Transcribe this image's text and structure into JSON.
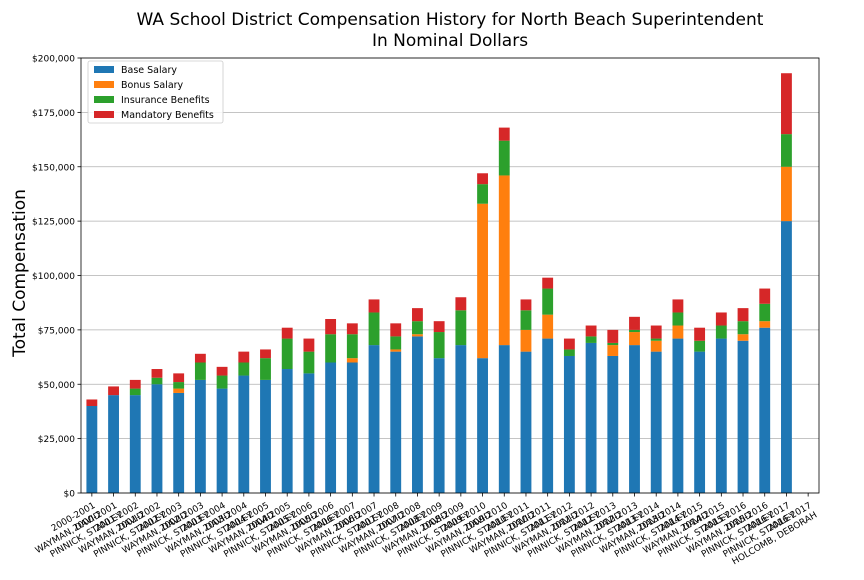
{
  "chart_data": {
    "type": "bar",
    "stacked": true,
    "title": "WA School District Compensation History for North Beach Superintendent",
    "subtitle": "In Nominal Dollars",
    "ylabel": "Total Compensation",
    "xlabel": "",
    "ylim": [
      0,
      200000
    ],
    "yticks": [
      0,
      25000,
      50000,
      75000,
      100000,
      125000,
      150000,
      175000,
      200000
    ],
    "ytick_labels": [
      "$0",
      "$25,000",
      "$50,000",
      "$75,000",
      "$100,000",
      "$125,000",
      "$150,000",
      "$175,000",
      "$200,000"
    ],
    "grid": "horizontal",
    "legend_position": "top-left",
    "categories": [
      "2000-2001\nWAYMAN, DAVID",
      "2000-2001\nPINNICK, STANLEY",
      "2001-2002\nWAYMAN, DAVID",
      "2001-2002\nPINNICK, STANLEY",
      "2002-2003\nWAYMAN, DAVID",
      "2002-2003\nPINNICK, STANLEY",
      "2003-2004\nWAYMAN, DAVID",
      "2003-2004\nPINNICK, STANLEY",
      "2004-2005\nWAYMAN, DAVID",
      "2004-2005\nPINNICK, STANLEY",
      "2005-2006\nWAYMAN, DAVID",
      "2005-2006\nPINNICK, STANLEY",
      "2006-2007\nWAYMAN, DAVID",
      "2006-2007\nPINNICK, STANLEY",
      "2007-2008\nWAYMAN, DAVID",
      "2007-2008\nPINNICK, STANLEY",
      "2008-2009\nWAYMAN, DAVID",
      "2008-2009\nPINNICK, STANLEY",
      "2009-2010\nWAYMAN, DAVID",
      "2009-2010\nPINNICK, STANLEY",
      "2010-2011\nWAYMAN, DAVID",
      "2010-2011\nPINNICK, STANLEY",
      "2011-2012\nWAYMAN, DAVID",
      "2011-2012\nPINNICK, STANLEY",
      "2012-2013\nWAYMAN, DAVID",
      "2012-2013\nPINNICK, STANLEY",
      "2013-2014\nWAYMAN, DAVID",
      "2013-2014\nPINNICK, STANLEY",
      "2014-2015\nWAYMAN, DAVID",
      "2014-2015\nPINNICK, STANLEY",
      "2015-2016\nWAYMAN, DAVID",
      "2015-2016\nPINNICK, STANLEY",
      "2016-2017\nPINNICK, STANLEY",
      "2016-2017\nHOLCOMB, DEBORAH"
    ],
    "series": [
      {
        "name": "Base Salary",
        "color": "#1f77b4",
        "values": [
          40000,
          45000,
          45000,
          50000,
          46000,
          52000,
          48000,
          54000,
          52000,
          57000,
          55000,
          60000,
          60000,
          68000,
          65000,
          72000,
          62000,
          68000,
          62000,
          68000,
          65000,
          71000,
          63000,
          69000,
          63000,
          68000,
          65000,
          71000,
          65000,
          71000,
          70000,
          76000,
          125000,
          0
        ]
      },
      {
        "name": "Bonus Salary",
        "color": "#ff7f0e",
        "values": [
          0,
          0,
          0,
          0,
          2000,
          0,
          0,
          0,
          0,
          0,
          0,
          0,
          2000,
          0,
          1000,
          1000,
          0,
          0,
          71000,
          78000,
          10000,
          11000,
          0,
          0,
          5000,
          6000,
          5000,
          6000,
          0,
          0,
          3000,
          3000,
          25000,
          0
        ]
      },
      {
        "name": "Insurance Benefits",
        "color": "#2ca02c",
        "values": [
          0,
          0,
          3000,
          3000,
          3000,
          8000,
          6000,
          6000,
          10000,
          14000,
          10000,
          13000,
          11000,
          15000,
          6000,
          6000,
          12000,
          16000,
          9000,
          16000,
          9000,
          12000,
          3000,
          3000,
          1000,
          1000,
          1000,
          6000,
          5000,
          6000,
          6000,
          8000,
          15000,
          0
        ]
      },
      {
        "name": "Mandatory Benefits",
        "color": "#d62728",
        "values": [
          3000,
          4000,
          4000,
          4000,
          4000,
          4000,
          4000,
          5000,
          4000,
          5000,
          6000,
          7000,
          5000,
          6000,
          6000,
          6000,
          5000,
          6000,
          5000,
          6000,
          5000,
          5000,
          5000,
          5000,
          6000,
          6000,
          6000,
          6000,
          6000,
          6000,
          6000,
          7000,
          28000,
          0
        ]
      }
    ]
  }
}
